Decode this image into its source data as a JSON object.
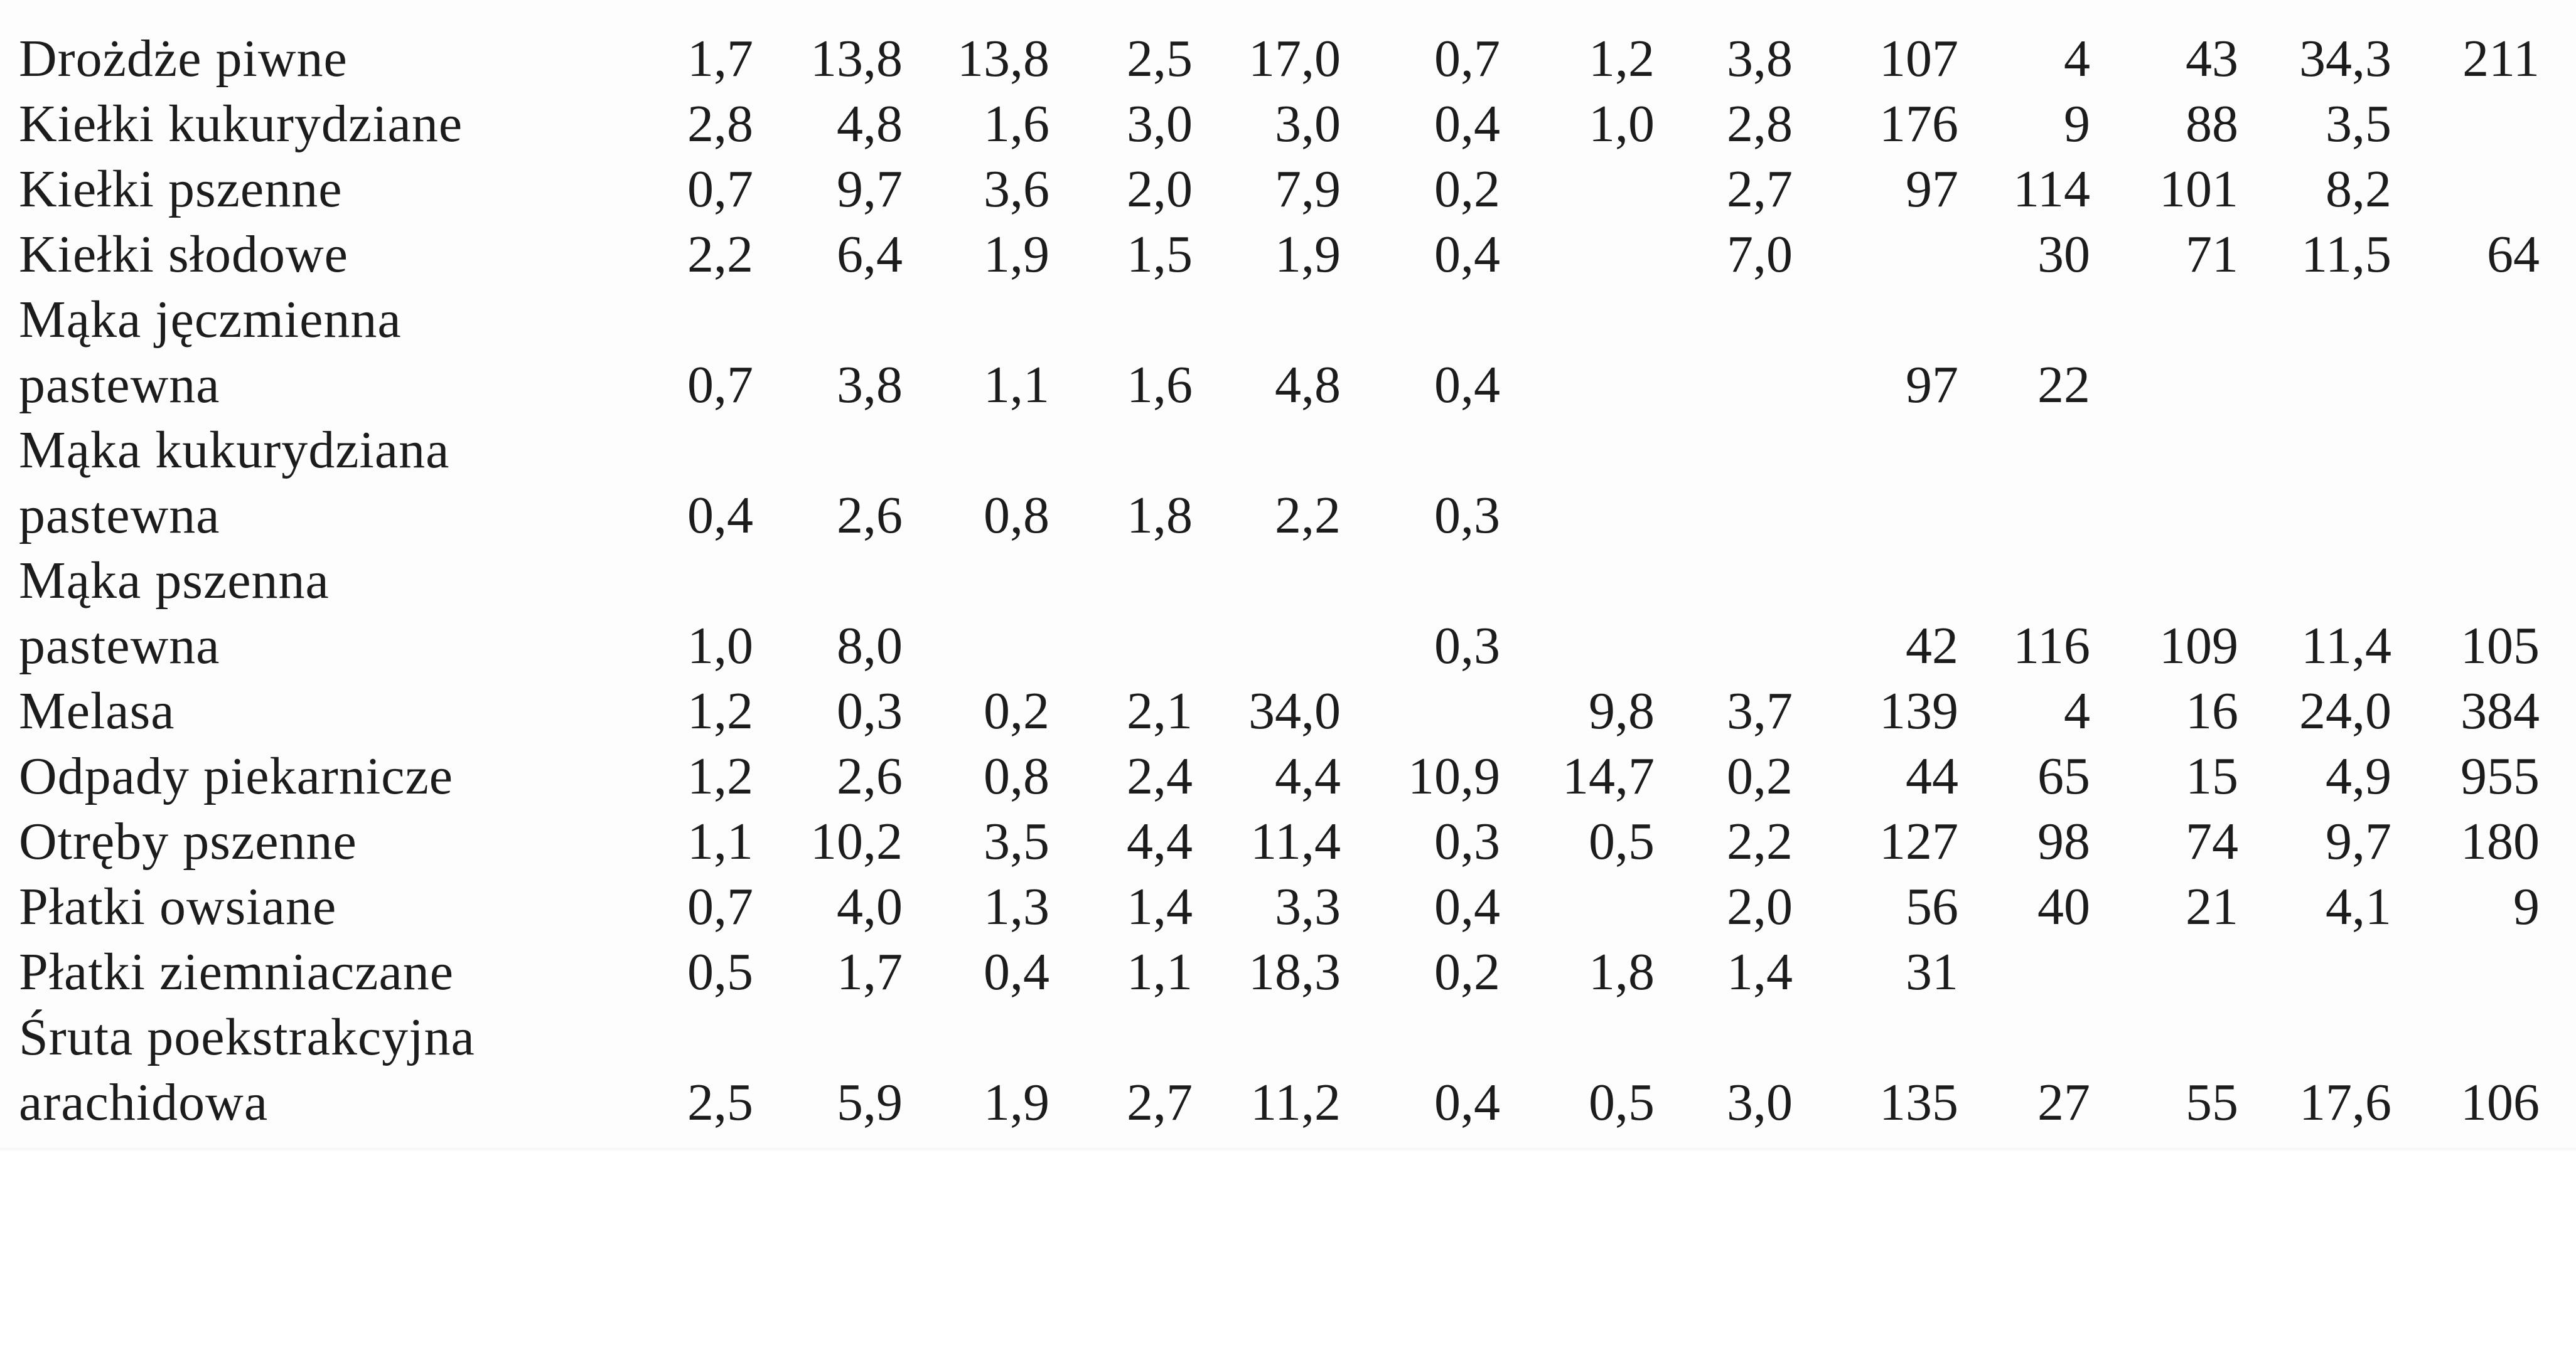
{
  "rows": [
    {
      "label": "Drożdże piwne",
      "values": [
        "1,7",
        "13,8",
        "13,8",
        "2,5",
        "17,0",
        "0,7",
        "1,2",
        "3,8",
        "107",
        "4",
        "43",
        "34,3",
        "211"
      ]
    },
    {
      "label": "Kiełki kukurydziane",
      "values": [
        "2,8",
        "4,8",
        "1,6",
        "3,0",
        "3,0",
        "0,4",
        "1,0",
        "2,8",
        "176",
        "9",
        "88",
        "3,5",
        ""
      ]
    },
    {
      "label": "Kiełki pszenne",
      "values": [
        "0,7",
        "9,7",
        "3,6",
        "2,0",
        "7,9",
        "0,2",
        "",
        "2,7",
        "97",
        "114",
        "101",
        "8,2",
        ""
      ]
    },
    {
      "label": "Kiełki słodowe",
      "values": [
        "2,2",
        "6,4",
        "1,9",
        "1,5",
        "1,9",
        "0,4",
        "",
        "7,0",
        "",
        "30",
        "71",
        "11,5",
        "64"
      ]
    },
    {
      "label": "Mąka jęczmienna",
      "values": [
        "",
        "",
        "",
        "",
        "",
        "",
        "",
        "",
        "",
        "",
        "",
        "",
        ""
      ]
    },
    {
      "label": "pastewna",
      "values": [
        "0,7",
        "3,8",
        "1,1",
        "1,6",
        "4,8",
        "0,4",
        "",
        "",
        "97",
        "22",
        "",
        "",
        ""
      ]
    },
    {
      "label": "Mąka kukurydziana",
      "values": [
        "",
        "",
        "",
        "",
        "",
        "",
        "",
        "",
        "",
        "",
        "",
        "",
        ""
      ]
    },
    {
      "label": "pastewna",
      "values": [
        "0,4",
        "2,6",
        "0,8",
        "1,8",
        "2,2",
        "0,3",
        "",
        "",
        "",
        "",
        "",
        "",
        ""
      ]
    },
    {
      "label": "Mąka pszenna",
      "values": [
        "",
        "",
        "",
        "",
        "",
        "",
        "",
        "",
        "",
        "",
        "",
        "",
        ""
      ]
    },
    {
      "label": "pastewna",
      "values": [
        "1,0",
        "8,0",
        "",
        "",
        "",
        "0,3",
        "",
        "",
        "42",
        "116",
        "109",
        "11,4",
        "105"
      ]
    },
    {
      "label": "Melasa",
      "values": [
        "1,2",
        "0,3",
        "0,2",
        "2,1",
        "34,0",
        "",
        "9,8",
        "3,7",
        "139",
        "4",
        "16",
        "24,0",
        "384"
      ]
    },
    {
      "label": "Odpady piekarnicze",
      "values": [
        "1,2",
        "2,6",
        "0,8",
        "2,4",
        "4,4",
        "10,9",
        "14,7",
        "0,2",
        "44",
        "65",
        "15",
        "4,9",
        "955"
      ]
    },
    {
      "label": "Otręby pszenne",
      "values": [
        "1,1",
        "10,2",
        "3,5",
        "4,4",
        "11,4",
        "0,3",
        "0,5",
        "2,2",
        "127",
        "98",
        "74",
        "9,7",
        "180"
      ]
    },
    {
      "label": "Płatki owsiane",
      "values": [
        "0,7",
        "4,0",
        "1,3",
        "1,4",
        "3,3",
        "0,4",
        "",
        "2,0",
        "56",
        "40",
        "21",
        "4,1",
        "9"
      ]
    },
    {
      "label": "Płatki ziemniaczane",
      "values": [
        "0,5",
        "1,7",
        "0,4",
        "1,1",
        "18,3",
        "0,2",
        "1,8",
        "1,4",
        "31",
        "",
        "",
        "",
        ""
      ]
    },
    {
      "label": "Śruta poekstrakcyjna",
      "values": [
        "",
        "",
        "",
        "",
        "",
        "",
        "",
        "",
        "",
        "",
        "",
        "",
        ""
      ]
    },
    {
      "label": "arachidowa",
      "values": [
        "2,5",
        "5,9",
        "1,9",
        "2,7",
        "11,2",
        "0,4",
        "0,5",
        "3,0",
        "135",
        "27",
        "55",
        "17,6",
        "106"
      ]
    }
  ]
}
